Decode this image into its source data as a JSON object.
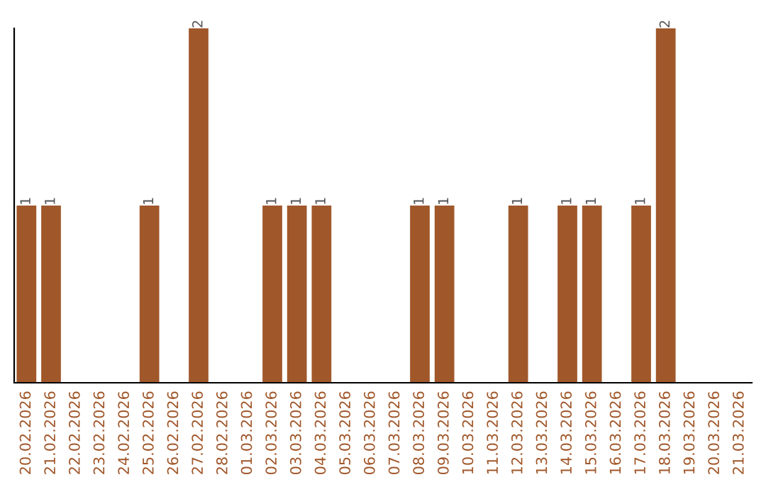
{
  "chart_data": {
    "type": "bar",
    "categories": [
      "20.02.2026",
      "21.02.2026",
      "22.02.2026",
      "23.02.2026",
      "24.02.2026",
      "25.02.2026",
      "26.02.2026",
      "27.02.2026",
      "28.02.2026",
      "01.03.2026",
      "02.03.2026",
      "03.03.2026",
      "04.03.2026",
      "05.03.2026",
      "06.03.2026",
      "07.03.2026",
      "08.03.2026",
      "09.03.2026",
      "10.03.2026",
      "11.03.2026",
      "12.03.2026",
      "13.03.2026",
      "14.03.2026",
      "15.03.2026",
      "16.03.2026",
      "17.03.2026",
      "18.03.2026",
      "19.03.2026",
      "20.03.2026",
      "21.03.2026"
    ],
    "series": [
      {
        "color": "#a0572a",
        "values": [
          1,
          1,
          0,
          0,
          0,
          1,
          0,
          2,
          0,
          0,
          1,
          1,
          1,
          0,
          0,
          0,
          1,
          1,
          0,
          0,
          1,
          0,
          1,
          1,
          0,
          1,
          2,
          0,
          0,
          0
        ],
        "value_labels": [
          "1",
          "1",
          null,
          null,
          null,
          "1",
          null,
          "2",
          null,
          null,
          "1",
          "1",
          "1",
          null,
          null,
          null,
          "1",
          "1",
          null,
          null,
          "1",
          null,
          "1",
          "1",
          null,
          "1",
          "2",
          null,
          null,
          null
        ]
      }
    ],
    "ylim": [
      0,
      2
    ],
    "tick_labels": "x",
    "grid": false,
    "legend": false
  }
}
